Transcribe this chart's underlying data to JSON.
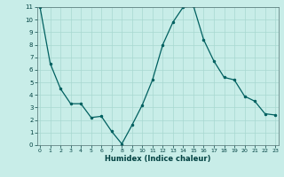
{
  "x": [
    0,
    1,
    2,
    3,
    4,
    5,
    6,
    7,
    8,
    9,
    10,
    11,
    12,
    13,
    14,
    15,
    16,
    17,
    18,
    19,
    20,
    21,
    22,
    23
  ],
  "y": [
    11.0,
    6.5,
    4.5,
    3.3,
    3.3,
    2.2,
    2.3,
    1.1,
    0.1,
    1.6,
    3.2,
    5.2,
    8.0,
    9.8,
    11.0,
    11.1,
    8.4,
    6.7,
    5.4,
    5.2,
    3.9,
    3.5,
    2.5,
    2.4
  ],
  "xlabel": "Humidex (Indice chaleur)",
  "xlim": [
    -0.3,
    23.3
  ],
  "ylim": [
    0,
    11
  ],
  "yticks": [
    0,
    1,
    2,
    3,
    4,
    5,
    6,
    7,
    8,
    9,
    10,
    11
  ],
  "xticks": [
    0,
    1,
    2,
    3,
    4,
    5,
    6,
    7,
    8,
    9,
    10,
    11,
    12,
    13,
    14,
    15,
    16,
    17,
    18,
    19,
    20,
    21,
    22,
    23
  ],
  "line_color": "#006060",
  "marker_color": "#006060",
  "bg_color": "#c8ede8",
  "grid_color": "#a8d8d0",
  "axis_bg": "#c8ede8",
  "tick_color": "#004040",
  "label_color": "#004040"
}
